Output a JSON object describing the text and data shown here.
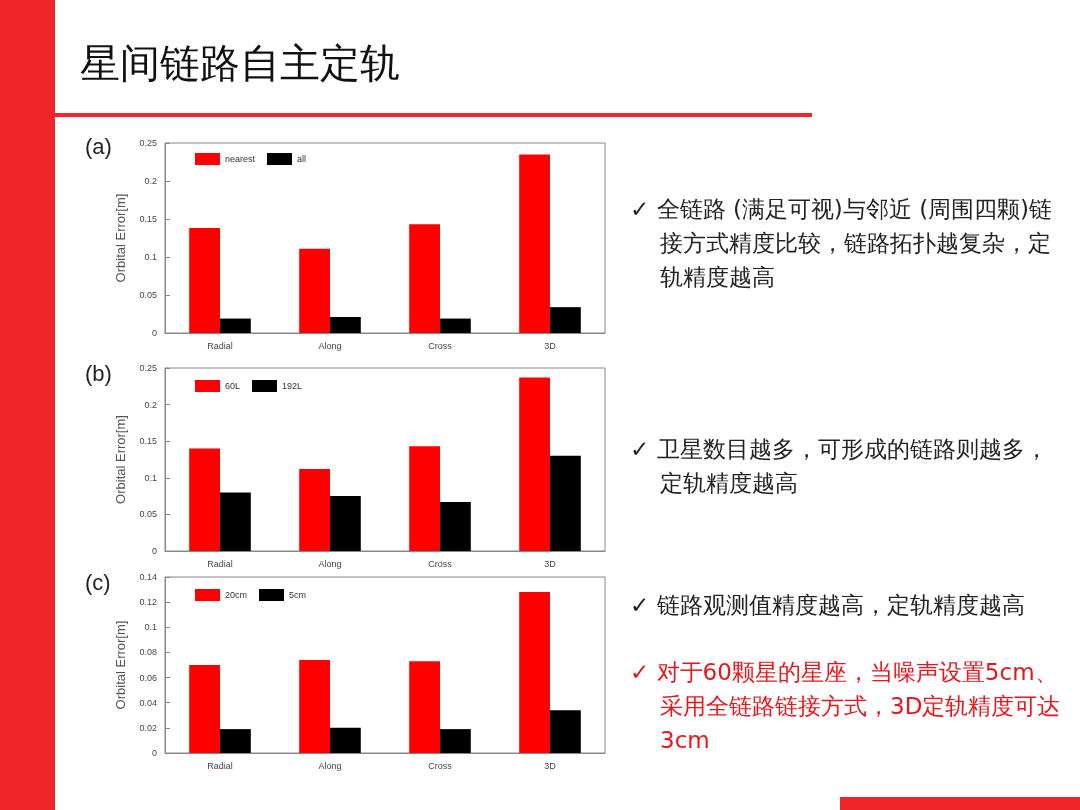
{
  "chart_data": [
    {
      "type": "bar",
      "title": "(a)",
      "ylabel": "Orbital Error[m]",
      "categories": [
        "Radial",
        "Along",
        "Cross",
        "3D"
      ],
      "series": [
        {
          "name": "nearest",
          "color": "#ff0000",
          "values": [
            0.138,
            0.111,
            0.143,
            0.235
          ]
        },
        {
          "name": "all",
          "color": "#000000",
          "values": [
            0.019,
            0.021,
            0.019,
            0.034
          ]
        }
      ],
      "ylim": [
        0,
        0.25
      ],
      "yticks": [
        0,
        0.05,
        0.1,
        0.15,
        0.2,
        0.25
      ],
      "grid": false,
      "legend": "top left"
    },
    {
      "type": "bar",
      "title": "(b)",
      "ylabel": "Orbital Error[m]",
      "categories": [
        "Radial",
        "Along",
        "Cross",
        "3D"
      ],
      "series": [
        {
          "name": "60L",
          "color": "#ff0000",
          "values": [
            0.14,
            0.112,
            0.143,
            0.237
          ]
        },
        {
          "name": "192L",
          "color": "#000000",
          "values": [
            0.08,
            0.075,
            0.067,
            0.13
          ]
        }
      ],
      "ylim": [
        0,
        0.25
      ],
      "yticks": [
        0,
        0.05,
        0.1,
        0.15,
        0.2,
        0.25
      ],
      "grid": false,
      "legend": "top left"
    },
    {
      "type": "bar",
      "title": "(c)",
      "ylabel": "Orbital Error[m]",
      "categories": [
        "Radial",
        "Along",
        "Cross",
        "3D"
      ],
      "series": [
        {
          "name": "20cm",
          "color": "#ff0000",
          "values": [
            0.07,
            0.074,
            0.073,
            0.128
          ]
        },
        {
          "name": "5cm",
          "color": "#000000",
          "values": [
            0.019,
            0.02,
            0.019,
            0.034
          ]
        }
      ],
      "ylim": [
        0,
        0.14
      ],
      "yticks": [
        0,
        0.02,
        0.04,
        0.06,
        0.08,
        0.1,
        0.12,
        0.14
      ],
      "grid": false,
      "legend": "top left"
    },
    {
      "type": "other",
      "title": "星间链路自主定轨",
      "annotations": [
        "✓ 全链路 (满足可视)与邻近 (周围四颗)链接方式精度比较，链路拓扑越复杂，定轨精度越高",
        "✓ 卫星数目越多，可形成的链路则越多，定轨精度越高",
        "✓ 链路观测值精度越高，定轨精度越高",
        "✓ 对于60颗星的星座，当噪声设置5cm、采用全链路链接方式，3D定轨精度可达3cm"
      ]
    }
  ]
}
